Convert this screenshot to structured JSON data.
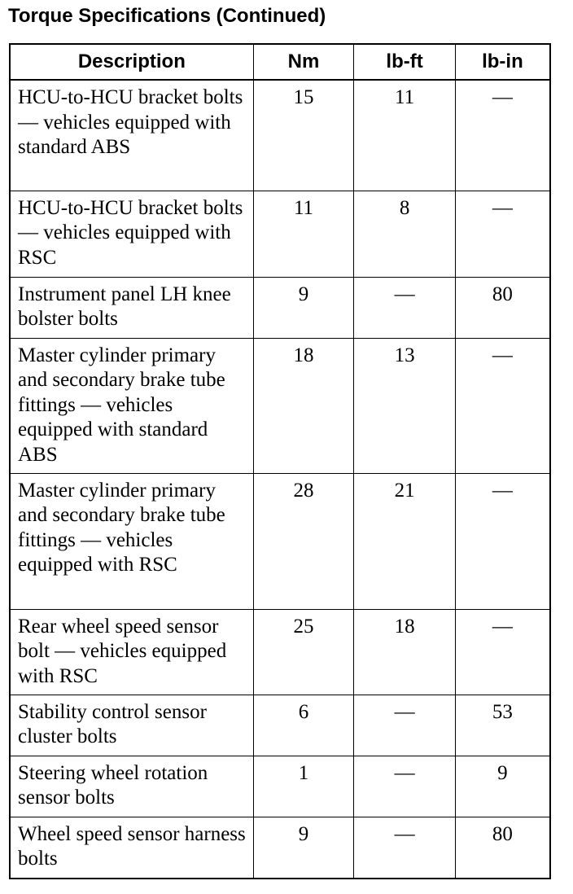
{
  "title": "Torque Specifications (Continued)",
  "table": {
    "headers": [
      "Description",
      "Nm",
      "lb-ft",
      "lb-in"
    ],
    "rows": [
      {
        "description": "HCU-to-HCU bracket bolts — vehicles equipped with standard ABS",
        "nm": "15",
        "lbft": "11",
        "lbin": "—"
      },
      {
        "description": "HCU-to-HCU bracket bolts — vehicles equipped with RSC",
        "nm": "11",
        "lbft": "8",
        "lbin": "—"
      },
      {
        "description": "Instrument panel LH knee bolster bolts",
        "nm": "9",
        "lbft": "—",
        "lbin": "80"
      },
      {
        "description": "Master cylinder primary and secondary brake tube fittings — vehicles equipped with standard ABS",
        "nm": "18",
        "lbft": "13",
        "lbin": "—"
      },
      {
        "description": "Master cylinder primary and secondary brake tube fittings — vehicles equipped with RSC",
        "nm": "28",
        "lbft": "21",
        "lbin": "—"
      },
      {
        "description": "Rear wheel speed sensor bolt — vehicles equipped with RSC",
        "nm": "25",
        "lbft": "18",
        "lbin": "—"
      },
      {
        "description": "Stability control sensor cluster bolts",
        "nm": "6",
        "lbft": "—",
        "lbin": "53"
      },
      {
        "description": "Steering wheel rotation sensor bolts",
        "nm": "1",
        "lbft": "—",
        "lbin": "9"
      },
      {
        "description": "Wheel speed sensor harness bolts",
        "nm": "9",
        "lbft": "—",
        "lbin": "80"
      }
    ]
  }
}
